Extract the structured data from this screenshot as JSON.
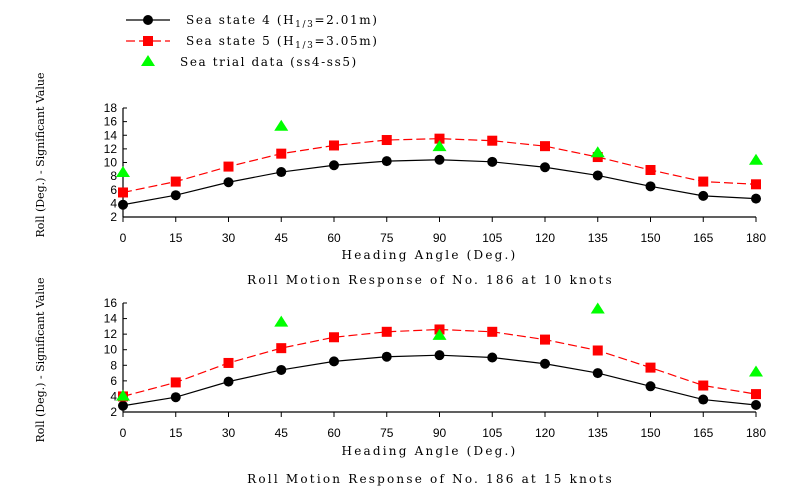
{
  "legend": {
    "ss4": {
      "before": "Sea state 4 (H",
      "sub": "1/3",
      "after": "=2.01m)"
    },
    "ss5": {
      "before": "Sea state 5 (H",
      "sub": "1/3",
      "after": "=3.05m)"
    },
    "trial": {
      "text": "Sea trial data (ss4-ss5)"
    }
  },
  "colors": {
    "ss4": "#000000",
    "ss5": "#ff0000",
    "trial": "#00ff00",
    "axis": "#000000"
  },
  "icons": {
    "ss4": "circle-marker",
    "ss5": "square-marker",
    "trial": "triangle-marker"
  },
  "chart_data": [
    {
      "type": "line",
      "title": "Roll Motion Response of No. 186 at 10 knots",
      "xlabel": "Heading Angle (Deg.)",
      "ylabel": "Roll (Deg.) - Significant Value",
      "x": [
        0,
        15,
        30,
        45,
        60,
        75,
        90,
        105,
        120,
        135,
        150,
        165,
        180
      ],
      "xlim": [
        0,
        180
      ],
      "ylim": [
        2,
        18
      ],
      "yticks": [
        2,
        4,
        6,
        8,
        10,
        12,
        14,
        16,
        18
      ],
      "series": [
        {
          "key": "ss4",
          "values": [
            3.8,
            5.2,
            7.1,
            8.6,
            9.6,
            10.2,
            10.4,
            10.1,
            9.3,
            8.1,
            6.5,
            5.1,
            4.7
          ]
        },
        {
          "key": "ss5",
          "values": [
            5.6,
            7.2,
            9.4,
            11.3,
            12.5,
            13.3,
            13.5,
            13.2,
            12.4,
            10.8,
            8.9,
            7.2,
            6.8
          ]
        }
      ],
      "trial_points": [
        {
          "x": 0,
          "y": 8.6
        },
        {
          "x": 45,
          "y": 15.4
        },
        {
          "x": 90,
          "y": 12.4
        },
        {
          "x": 135,
          "y": 11.5
        },
        {
          "x": 180,
          "y": 10.4
        }
      ]
    },
    {
      "type": "line",
      "title": "Roll Motion Response of No. 186 at 15 knots",
      "xlabel": "Heading Angle (Deg.)",
      "ylabel": "Roll (Deg.) - Significant Value",
      "x": [
        0,
        15,
        30,
        45,
        60,
        75,
        90,
        105,
        120,
        135,
        150,
        165,
        180
      ],
      "xlim": [
        0,
        180
      ],
      "ylim": [
        2,
        16
      ],
      "yticks": [
        2,
        4,
        6,
        8,
        10,
        12,
        14,
        16
      ],
      "series": [
        {
          "key": "ss4",
          "values": [
            2.8,
            3.9,
            5.9,
            7.4,
            8.5,
            9.1,
            9.3,
            9.0,
            8.2,
            7.0,
            5.3,
            3.6,
            2.9
          ]
        },
        {
          "key": "ss5",
          "values": [
            4.0,
            5.8,
            8.3,
            10.2,
            11.6,
            12.3,
            12.6,
            12.3,
            11.3,
            9.9,
            7.7,
            5.4,
            4.3
          ]
        }
      ],
      "trial_points": [
        {
          "x": 0,
          "y": 4.1
        },
        {
          "x": 45,
          "y": 13.6
        },
        {
          "x": 90,
          "y": 11.9
        },
        {
          "x": 135,
          "y": 15.3
        },
        {
          "x": 180,
          "y": 7.2
        }
      ]
    }
  ]
}
